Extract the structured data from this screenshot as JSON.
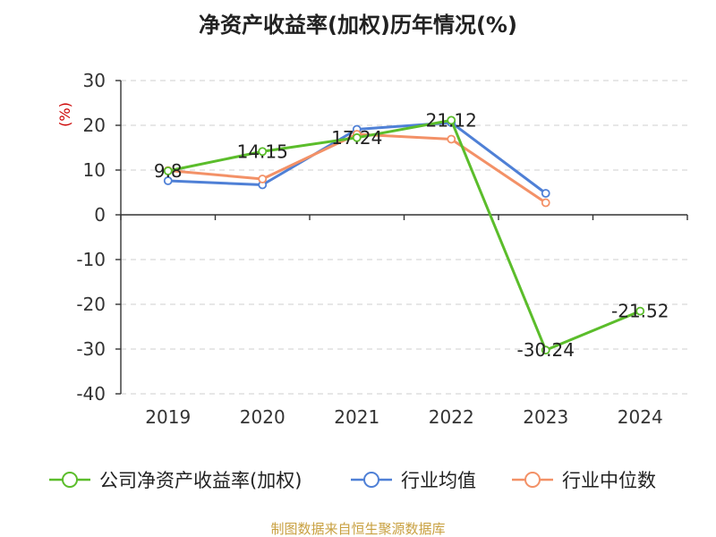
{
  "chart_data": {
    "type": "line",
    "title": "净资产收益率(加权)历年情况(%)",
    "ylabel": "(%)",
    "categories": [
      "2019",
      "2020",
      "2021",
      "2022",
      "2023",
      "2024"
    ],
    "ylim": [
      -40,
      30
    ],
    "yticks": [
      "30",
      "20",
      "10",
      "0",
      "-10",
      "-20",
      "-30",
      "-40"
    ],
    "grid": true,
    "legend_position": "bottom",
    "series": [
      {
        "name": "公司净资产收益率(加权)",
        "color": "#5bbd2b",
        "values": [
          9.8,
          14.15,
          17.24,
          21.12,
          -30.24,
          -21.52
        ],
        "labels": [
          "9.8",
          "14.15",
          "17.24",
          "21.12",
          "-30.24",
          "-21.52"
        ]
      },
      {
        "name": "行业均值",
        "color": "#4f80d6",
        "values": [
          7.6,
          6.7,
          19.1,
          20.6,
          4.8,
          null
        ]
      },
      {
        "name": "行业中位数",
        "color": "#f39167",
        "values": [
          9.9,
          8.0,
          18.0,
          16.9,
          2.7,
          null
        ]
      }
    ]
  },
  "source": "制图数据来自恒生聚源数据库",
  "colors": {
    "unit_label": "#cc0000",
    "source_text": "#c8a040",
    "axis": "#333333",
    "grid": "#cfcfcf"
  }
}
